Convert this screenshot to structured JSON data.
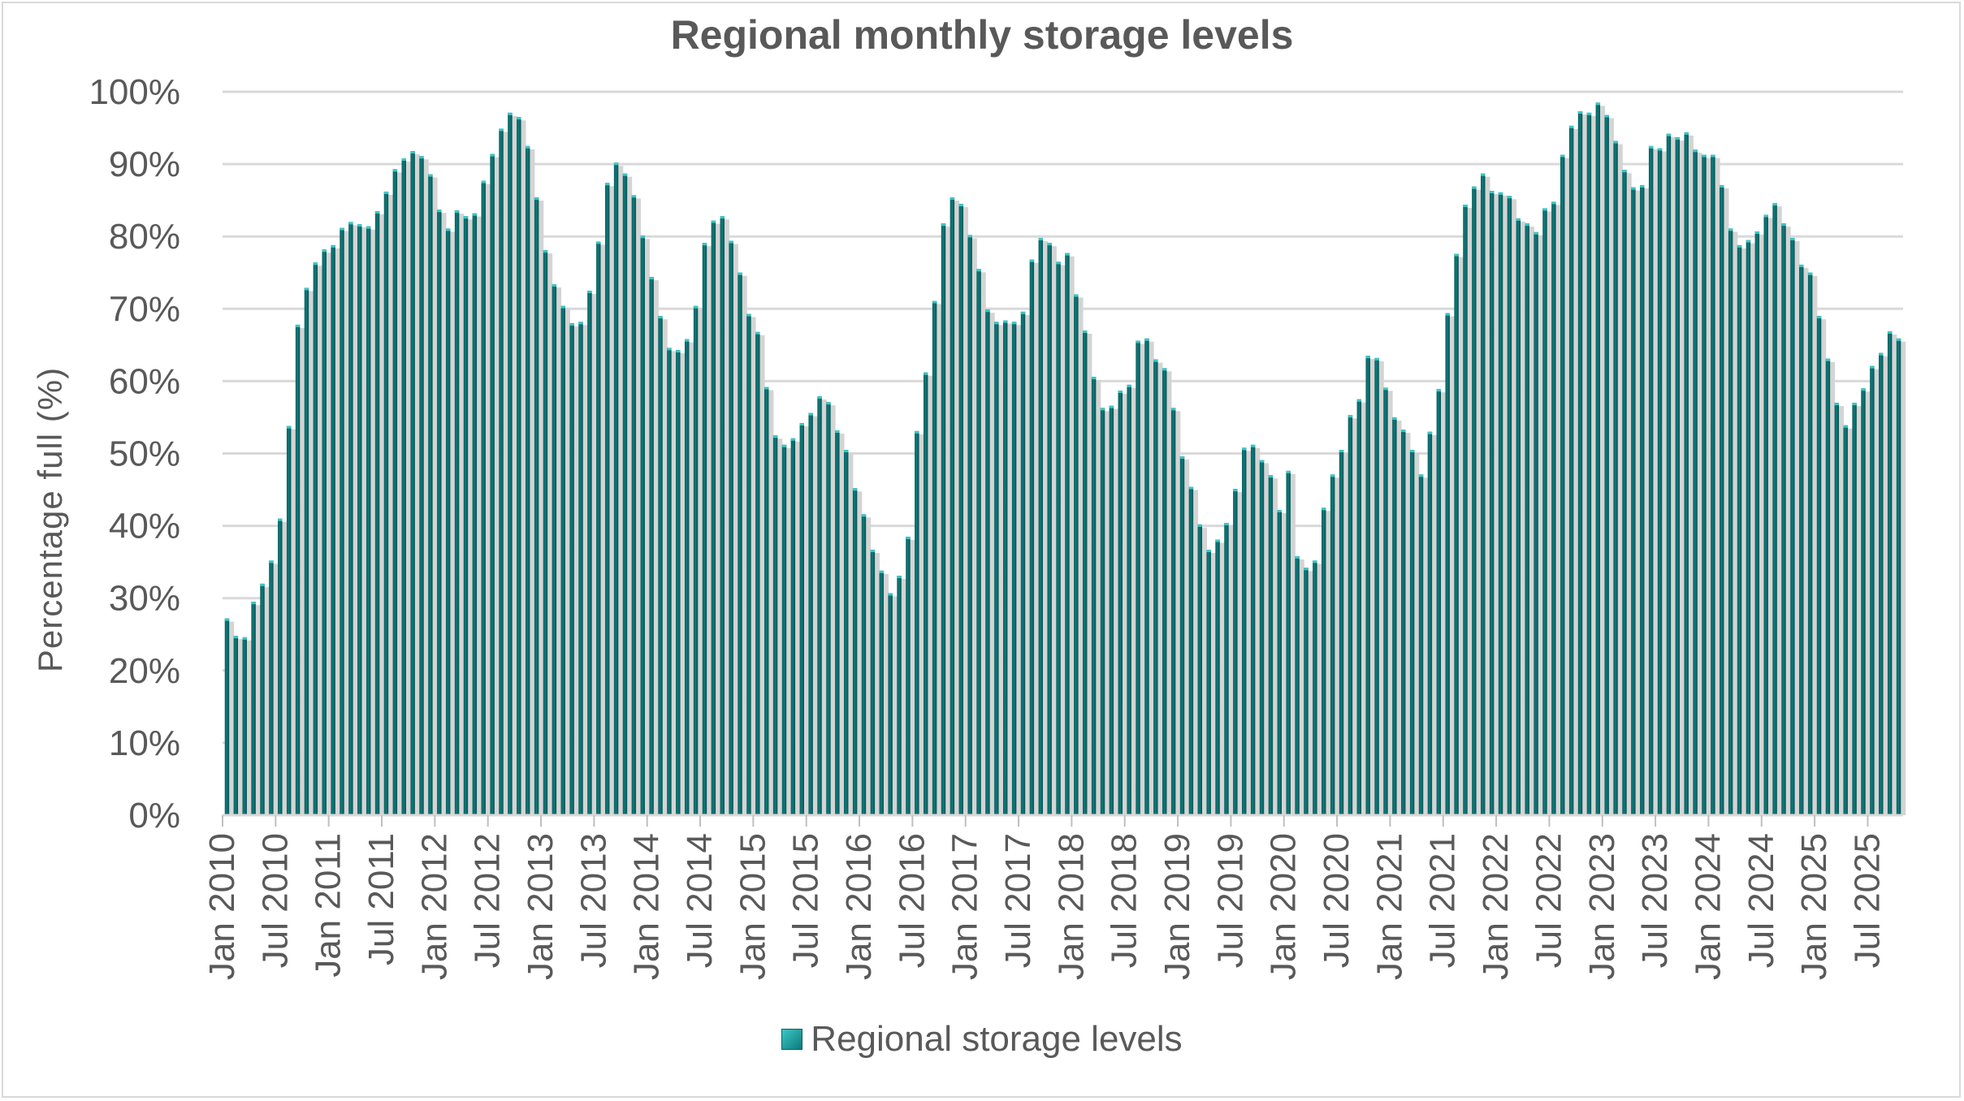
{
  "chart_data": {
    "type": "bar",
    "title": "Regional monthly storage levels",
    "xlabel": "",
    "ylabel": "Percentage full (%)",
    "ylim": [
      0,
      100
    ],
    "yticks": [
      "0%",
      "10%",
      "20%",
      "30%",
      "40%",
      "50%",
      "60%",
      "70%",
      "80%",
      "90%",
      "100%"
    ],
    "grid": true,
    "legend_position": "bottom",
    "start": "Jan 2010",
    "xtick_labels": [
      "Jan 2010",
      "Jul 2010",
      "Jan 2011",
      "Jul 2011",
      "Jan 2012",
      "Jul 2012",
      "Jan 2013",
      "Jul 2013",
      "Jan 2014",
      "Jul 2014",
      "Jan 2015",
      "Jul 2015",
      "Jan 2016",
      "Jul 2016",
      "Jan 2017",
      "Jul 2017",
      "Jan 2018",
      "Jul 2018",
      "Jan 2019",
      "Jul 2019",
      "Jan 2020",
      "Jul 2020",
      "Jan 2021",
      "Jul 2021",
      "Jan 2022",
      "Jul 2022",
      "Jan 2023",
      "Jul 2023",
      "Jan 2024",
      "Jul 2024",
      "Jan 2025",
      "Jul 2025"
    ],
    "series": [
      {
        "name": "Regional storage levels",
        "color": "#0b6e6e",
        "values": [
          27.2,
          24.8,
          24.6,
          29.5,
          32.0,
          35.2,
          41.0,
          53.8,
          67.8,
          72.9,
          76.4,
          78.2,
          78.8,
          81.2,
          82.0,
          81.7,
          81.4,
          83.5,
          86.2,
          89.3,
          90.8,
          91.8,
          91.1,
          88.6,
          83.7,
          81.1,
          83.6,
          82.8,
          83.2,
          87.7,
          91.4,
          94.9,
          97.1,
          96.5,
          92.5,
          85.4,
          78.1,
          73.4,
          70.4,
          68.0,
          68.2,
          72.5,
          79.3,
          87.4,
          90.2,
          88.7,
          85.7,
          80.1,
          74.4,
          69.0,
          64.6,
          64.3,
          65.8,
          70.4,
          79.1,
          82.2,
          82.8,
          79.4,
          75.0,
          69.3,
          66.8,
          59.2,
          52.5,
          51.2,
          52.1,
          54.2,
          55.6,
          57.9,
          57.1,
          53.2,
          50.5,
          45.2,
          41.6,
          36.7,
          33.8,
          30.7,
          33.1,
          38.5,
          53.1,
          61.2,
          71.1,
          81.8,
          85.4,
          84.5,
          80.2,
          75.5,
          69.9,
          68.2,
          68.4,
          68.2,
          69.6,
          76.8,
          79.8,
          79.1,
          76.5,
          77.7,
          72.0,
          67.0,
          60.6,
          56.3,
          56.6,
          58.7,
          59.5,
          65.6,
          65.9,
          63.0,
          61.8,
          56.3,
          49.6,
          45.4,
          40.2,
          36.7,
          38.1,
          40.4,
          45.1,
          50.8,
          51.2,
          49.1,
          47.0,
          42.2,
          47.6,
          35.8,
          34.2,
          35.2,
          42.5,
          47.1,
          50.5,
          55.3,
          57.5,
          63.5,
          63.2,
          59.1,
          55.0,
          53.3,
          50.5,
          47.1,
          53.0,
          58.9,
          69.4,
          77.6,
          84.4,
          86.9,
          88.7,
          86.3,
          86.1,
          85.6,
          82.5,
          81.8,
          80.6,
          83.9,
          84.8,
          91.3,
          95.3,
          97.3,
          97.1,
          98.5,
          96.8,
          93.2,
          89.2,
          86.8,
          87.1,
          92.5,
          92.2,
          94.2,
          93.7,
          94.4,
          92.0,
          91.3,
          91.3,
          87.1,
          81.1,
          78.8,
          79.5,
          80.7,
          83.0,
          84.6,
          81.8,
          79.8,
          76.1,
          75.0,
          69.0,
          63.1,
          57.0,
          53.9,
          57.0,
          59.0,
          62.1,
          63.9,
          66.9,
          65.9
        ]
      }
    ]
  }
}
